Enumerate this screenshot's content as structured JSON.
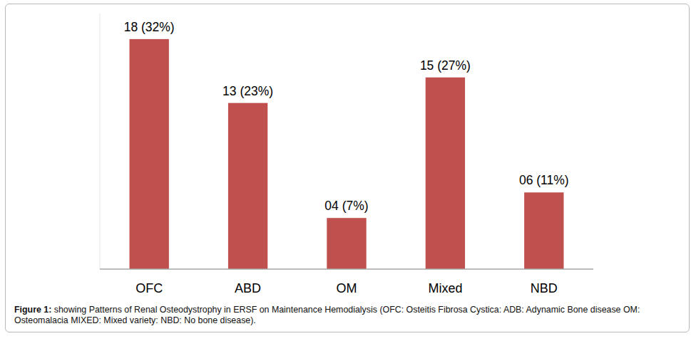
{
  "chart_data": {
    "type": "bar",
    "title": "Figure 1:",
    "subtitle": "showing Patterns of Renal Osteodystrophy in ERSF on Maintenance Hemodialysis (OFC: Osteitis Fibrosa Cystica: ADB: Adynamic Bone disease OM: Osteomalacia MIXED: Mixed variety: NBD: No bone disease).",
    "categories": [
      "OFC",
      "ABD",
      "OM",
      "Mixed",
      "NBD"
    ],
    "values": [
      18,
      13,
      4,
      15,
      6
    ],
    "value_labels": [
      "18 (32%)",
      "13 (23%)",
      "04 (7%)",
      "15 (27%)",
      "06 (11%)"
    ],
    "color": "#c0504d",
    "ylim": [
      0,
      20
    ],
    "grid": false,
    "data_labels": true,
    "tick_labels": "x"
  }
}
